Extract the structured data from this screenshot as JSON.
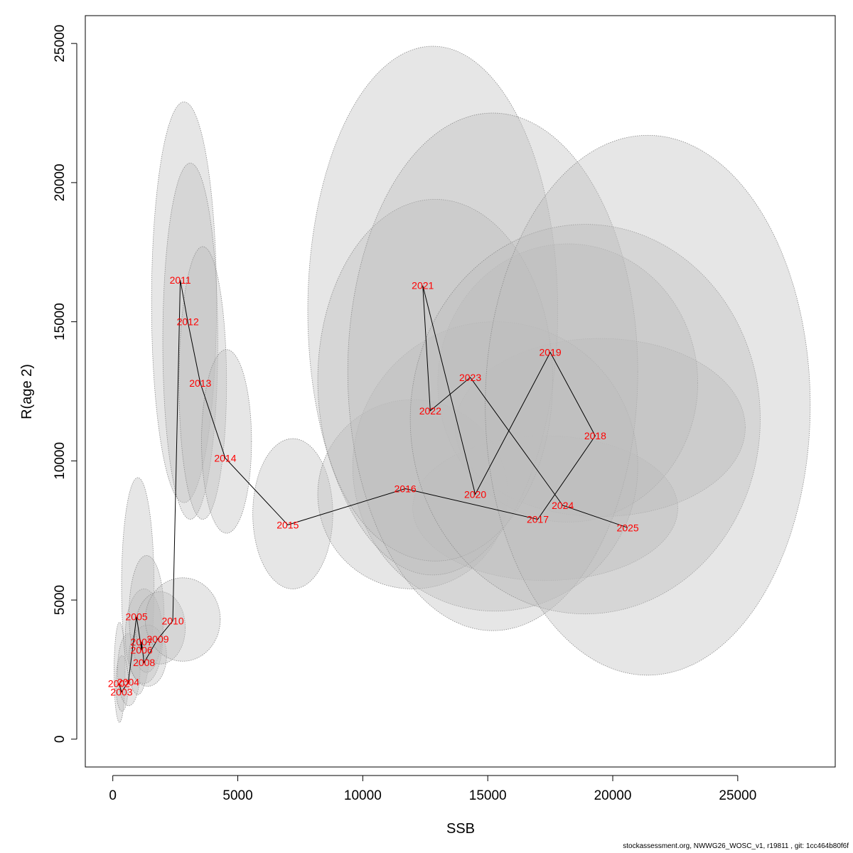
{
  "chart_data": {
    "type": "scatter",
    "xlabel": "SSB",
    "ylabel": "R(age 2)",
    "xlim": [
      -1100,
      28900
    ],
    "ylim": [
      -1000,
      26000
    ],
    "x_ticks": [
      0,
      5000,
      10000,
      15000,
      20000,
      25000
    ],
    "y_ticks": [
      0,
      5000,
      10000,
      15000,
      20000,
      25000
    ],
    "grid": false,
    "legend": "none",
    "colors": {
      "label": "#ff0000",
      "line": "#000000",
      "ellipse_fill": "#bebebe",
      "ellipse_stroke": "#8c8c8c"
    },
    "points": [
      {
        "year": "2002",
        "x": 250,
        "y": 2000
      },
      {
        "year": "2003",
        "x": 350,
        "y": 1700
      },
      {
        "year": "2004",
        "x": 620,
        "y": 2050
      },
      {
        "year": "2005",
        "x": 950,
        "y": 4400
      },
      {
        "year": "2006",
        "x": 1150,
        "y": 3200
      },
      {
        "year": "2007",
        "x": 1150,
        "y": 3500
      },
      {
        "year": "2008",
        "x": 1250,
        "y": 2750
      },
      {
        "year": "2009",
        "x": 1800,
        "y": 3600
      },
      {
        "year": "2010",
        "x": 2400,
        "y": 4250
      },
      {
        "year": "2011",
        "x": 2700,
        "y": 16500
      },
      {
        "year": "2012",
        "x": 3000,
        "y": 15000
      },
      {
        "year": "2013",
        "x": 3500,
        "y": 12800
      },
      {
        "year": "2014",
        "x": 4500,
        "y": 10100
      },
      {
        "year": "2015",
        "x": 7000,
        "y": 7700
      },
      {
        "year": "2016",
        "x": 11700,
        "y": 9000
      },
      {
        "year": "2017",
        "x": 17000,
        "y": 7900
      },
      {
        "year": "2018",
        "x": 19300,
        "y": 10900
      },
      {
        "year": "2019",
        "x": 17500,
        "y": 13900
      },
      {
        "year": "2020",
        "x": 14500,
        "y": 8800
      },
      {
        "year": "2021",
        "x": 12400,
        "y": 16300
      },
      {
        "year": "2022",
        "x": 12700,
        "y": 11800
      },
      {
        "year": "2023",
        "x": 14300,
        "y": 13000
      },
      {
        "year": "2024",
        "x": 18000,
        "y": 8400
      },
      {
        "year": "2025",
        "x": 20600,
        "y": 7600
      }
    ],
    "confidence_regions": [
      {
        "year": "2002",
        "cx": 270,
        "cy": 2400,
        "rx": 220,
        "ry": 1800
      },
      {
        "year": "2003",
        "cx": 370,
        "cy": 2000,
        "rx": 250,
        "ry": 1000
      },
      {
        "year": "2004",
        "cx": 640,
        "cy": 2500,
        "rx": 450,
        "ry": 1300
      },
      {
        "year": "2005",
        "cx": 1000,
        "cy": 5500,
        "rx": 650,
        "ry": 3900
      },
      {
        "year": "2006",
        "cx": 1250,
        "cy": 3700,
        "rx": 750,
        "ry": 1700
      },
      {
        "year": "2007",
        "cx": 1350,
        "cy": 4500,
        "rx": 700,
        "ry": 2100
      },
      {
        "year": "2008",
        "cx": 1400,
        "cy": 3000,
        "rx": 750,
        "ry": 1100
      },
      {
        "year": "2009",
        "cx": 1900,
        "cy": 4000,
        "rx": 1000,
        "ry": 1300
      },
      {
        "year": "2010",
        "cx": 2800,
        "cy": 4300,
        "rx": 1500,
        "ry": 1500
      },
      {
        "year": "2011",
        "cx": 2850,
        "cy": 15700,
        "rx": 1300,
        "ry": 7200
      },
      {
        "year": "2012",
        "cx": 3100,
        "cy": 14300,
        "rx": 1100,
        "ry": 6400
      },
      {
        "year": "2013",
        "cx": 3600,
        "cy": 12800,
        "rx": 950,
        "ry": 4900
      },
      {
        "year": "2014",
        "cx": 4550,
        "cy": 10700,
        "rx": 1000,
        "ry": 3300
      },
      {
        "year": "2015",
        "cx": 7200,
        "cy": 8100,
        "rx": 1600,
        "ry": 2700
      },
      {
        "year": "2016",
        "cx": 12000,
        "cy": 8800,
        "rx": 3800,
        "ry": 3400
      },
      {
        "year": "2017",
        "cx": 17300,
        "cy": 8300,
        "rx": 5300,
        "ry": 2600
      },
      {
        "year": "2018",
        "cx": 19500,
        "cy": 11200,
        "rx": 5800,
        "ry": 3200
      },
      {
        "year": "2019",
        "cx": 18200,
        "cy": 12800,
        "rx": 5200,
        "ry": 5000
      },
      {
        "year": "2020",
        "cx": 15300,
        "cy": 9800,
        "rx": 5700,
        "ry": 5200
      },
      {
        "year": "2021",
        "cx": 12800,
        "cy": 15400,
        "rx": 5000,
        "ry": 9500
      },
      {
        "year": "2022",
        "cx": 12900,
        "cy": 12900,
        "rx": 4700,
        "ry": 6500
      },
      {
        "year": "2023",
        "cx": 15200,
        "cy": 13200,
        "rx": 5800,
        "ry": 9300
      },
      {
        "year": "2024",
        "cx": 18900,
        "cy": 11500,
        "rx": 7000,
        "ry": 7000
      },
      {
        "year": "2025",
        "cx": 21400,
        "cy": 12000,
        "rx": 6500,
        "ry": 9700
      }
    ]
  },
  "footer": {
    "text": "stockassessment.org, NWWG26_WOSC_v1, r19811 , git: 1cc464b80f6f"
  }
}
